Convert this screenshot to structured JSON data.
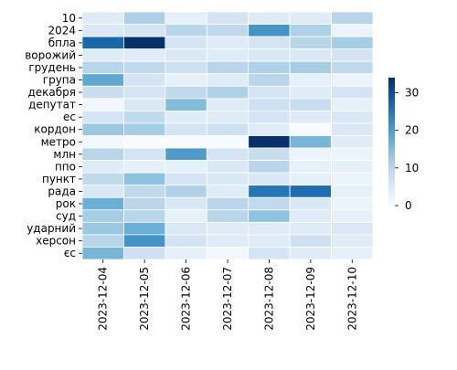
{
  "chart_data": {
    "type": "heatmap",
    "title": "",
    "xlabel": "",
    "ylabel": "",
    "x": [
      "2023-12-04",
      "2023-12-05",
      "2023-12-06",
      "2023-12-07",
      "2023-12-08",
      "2023-12-09",
      "2023-12-10"
    ],
    "y": [
      "10",
      "2024",
      "бпла",
      "ворожий",
      "грудень",
      "група",
      "декабря",
      "депутат",
      "ес",
      "кордон",
      "метро",
      "млн",
      "ппо",
      "пункт",
      "рада",
      "рок",
      "суд",
      "ударний",
      "херсон",
      "єс"
    ],
    "values": [
      [
        4,
        11,
        3,
        6,
        4,
        4,
        10
      ],
      [
        5,
        6,
        10,
        9,
        21,
        11,
        2
      ],
      [
        27,
        34,
        6,
        4,
        6,
        10,
        12
      ],
      [
        4,
        4,
        5,
        4,
        5,
        5,
        6
      ],
      [
        10,
        9,
        7,
        10,
        11,
        12,
        9
      ],
      [
        18,
        6,
        3,
        4,
        10,
        3,
        2
      ],
      [
        8,
        6,
        9,
        11,
        6,
        4,
        6
      ],
      [
        1,
        5,
        15,
        4,
        7,
        8,
        3
      ],
      [
        6,
        9,
        4,
        4,
        6,
        4,
        5
      ],
      [
        13,
        12,
        6,
        7,
        4,
        0,
        5
      ],
      [
        1,
        0,
        0,
        0,
        34,
        16,
        4
      ],
      [
        10,
        6,
        20,
        6,
        8,
        2,
        2
      ],
      [
        4,
        3,
        3,
        5,
        10,
        3,
        3
      ],
      [
        9,
        14,
        6,
        5,
        5,
        3,
        2
      ],
      [
        5,
        9,
        11,
        4,
        25,
        26,
        3
      ],
      [
        17,
        10,
        5,
        10,
        9,
        5,
        2
      ],
      [
        12,
        10,
        3,
        10,
        14,
        4,
        3
      ],
      [
        13,
        17,
        5,
        4,
        4,
        4,
        5
      ],
      [
        10,
        21,
        6,
        4,
        4,
        7,
        4
      ],
      [
        16,
        7,
        3,
        1,
        6,
        4,
        3
      ]
    ],
    "colorbar": {
      "min": 0,
      "max": 34,
      "ticks": [
        0,
        10,
        20,
        30
      ]
    },
    "colormap": "Blues",
    "cell_border_color": "#ffffff",
    "grid": false,
    "legend": "colorbar-right"
  }
}
